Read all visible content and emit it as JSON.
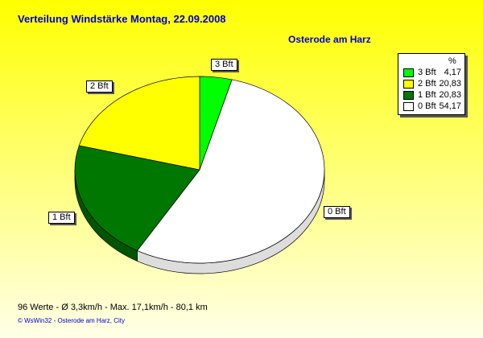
{
  "chart_data": {
    "type": "pie",
    "title": "Verteilung Windstärke  Montag, 22.09.2008",
    "subtitle": "Osterode am Harz",
    "legend_header": "%",
    "legend_placement": "top-right",
    "slices": [
      {
        "label": "3 Bft",
        "value": 4.17,
        "value_text": "4,17",
        "color": "#00ff00"
      },
      {
        "label": "0 Bft",
        "value": 54.17,
        "value_text": "54,17",
        "color": "#ffffff"
      },
      {
        "label": "1 Bft",
        "value": 20.83,
        "value_text": "20,83",
        "color": "#007700"
      },
      {
        "label": "2 Bft",
        "value": 20.83,
        "value_text": "20,83",
        "color": "#ffff00"
      }
    ],
    "legend_order": [
      0,
      3,
      2,
      1
    ]
  },
  "footer": {
    "stats": "96 Werte   -   Ø 3,3km/h  -  Max. 17,1km/h   -   80,1 km",
    "credit": "© WsWin32  -  Osterode am Harz, City"
  }
}
